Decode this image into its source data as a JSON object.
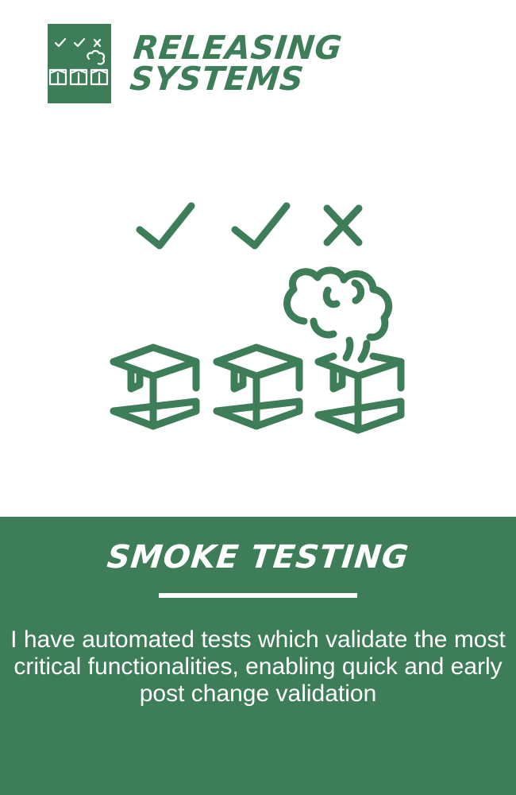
{
  "header": {
    "brand_line1": "RELEASING",
    "brand_line2": "SYSTEMS"
  },
  "icons": {
    "logo": "releasing-systems-logo-icon",
    "checks": [
      "check-icon",
      "check-icon",
      "cross-icon"
    ],
    "boxes": [
      "box-icon",
      "box-icon",
      "smoking-box-icon"
    ]
  },
  "panel": {
    "title": "SMOKE TESTING",
    "description": "I have automated tests which validate the most critical functionalities, enabling quick and early post change validation"
  },
  "colors": {
    "brand_green": "#3d7d58",
    "text_light": "#ffffff",
    "background": "#ffffff"
  }
}
